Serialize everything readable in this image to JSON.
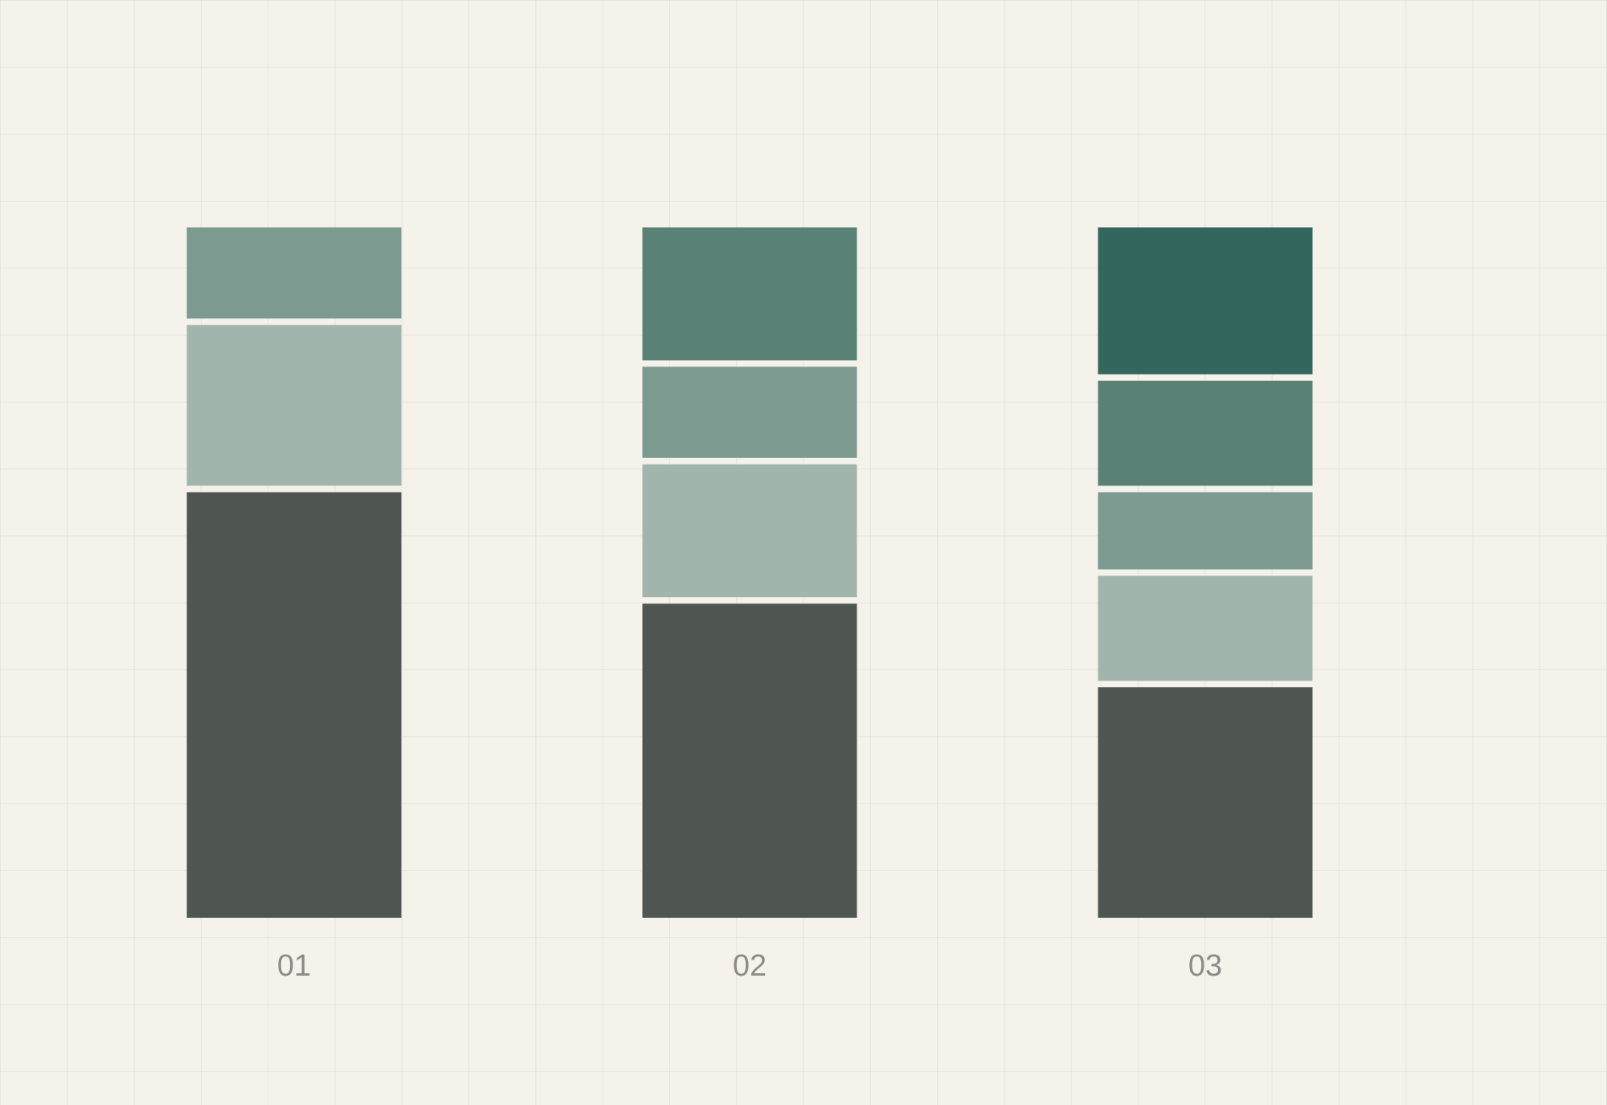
{
  "chart_data": {
    "type": "stacked-bar",
    "categories": [
      "01",
      "02",
      "03"
    ],
    "series": [
      {
        "color": "#4f5652",
        "values": [
          62,
          46,
          34
        ]
      },
      {
        "color": "#a2b5ad",
        "values": [
          24,
          20,
          16
        ]
      },
      {
        "color": "#7c9a90",
        "values": [
          14,
          14,
          12
        ]
      },
      {
        "color": "#5a8176",
        "values": [
          null,
          20,
          16
        ]
      },
      {
        "color": "#33675e",
        "values": [
          null,
          null,
          22
        ]
      }
    ],
    "ylim": [
      0,
      100
    ]
  }
}
